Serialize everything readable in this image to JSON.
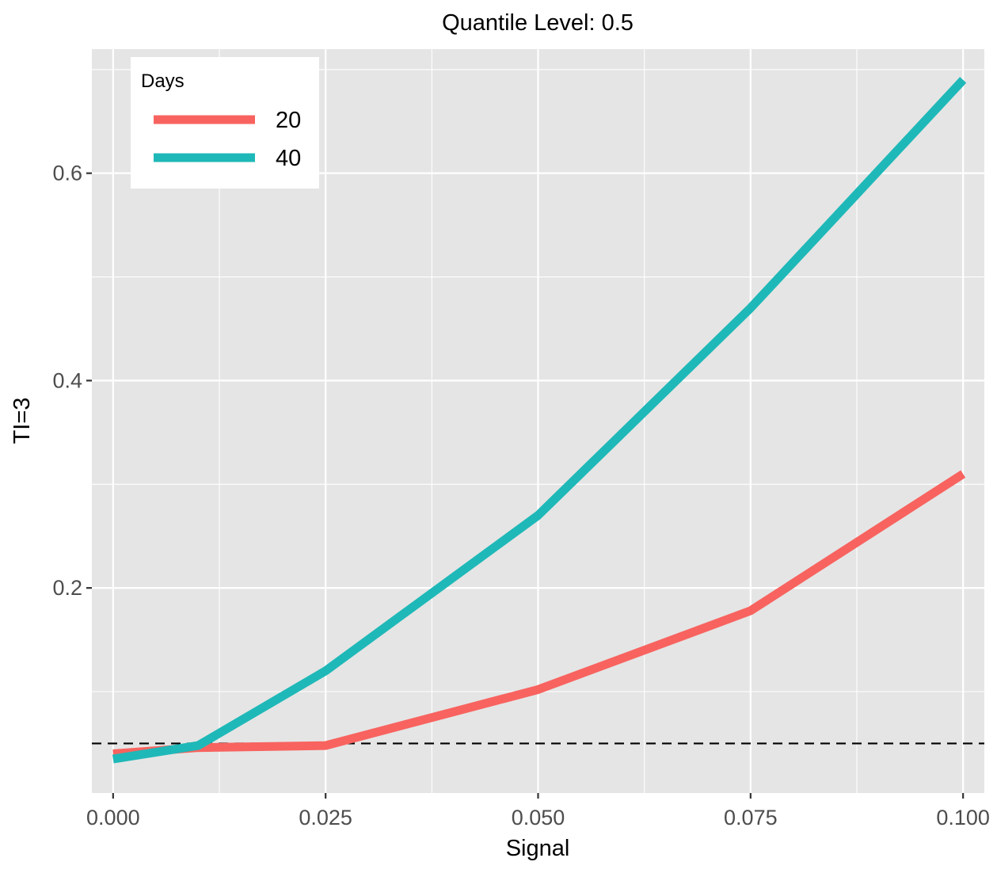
{
  "chart_data": {
    "type": "line",
    "title": "Quantile Level: 0.5",
    "xlabel": "Signal",
    "ylabel": "TI=3",
    "xlim": [
      -0.0025,
      0.1025
    ],
    "ylim": [
      0.0022,
      0.7197
    ],
    "x_ticks": [
      0.0,
      0.025,
      0.05,
      0.075,
      0.1
    ],
    "x_tick_labels": [
      "0.000",
      "0.025",
      "0.050",
      "0.075",
      "0.100"
    ],
    "y_ticks": [
      0.2,
      0.4,
      0.6
    ],
    "y_tick_labels": [
      "0.2",
      "0.4",
      "0.6"
    ],
    "grid": true,
    "background": "#e5e5e5",
    "legend": {
      "title": "Days",
      "position": "top-left"
    },
    "reference_line": {
      "type": "horizontal-dashed",
      "y": 0.05,
      "color": "#000000"
    },
    "series": [
      {
        "name": "20",
        "color": "#f8635f",
        "x": [
          0.0,
          0.01,
          0.025,
          0.05,
          0.075,
          0.1
        ],
        "y": [
          0.04,
          0.046,
          0.048,
          0.102,
          0.178,
          0.31
        ]
      },
      {
        "name": "40",
        "color": "#1fb8b8",
        "x": [
          0.0,
          0.01,
          0.025,
          0.05,
          0.075,
          0.1
        ],
        "y": [
          0.035,
          0.048,
          0.12,
          0.27,
          0.47,
          0.69
        ]
      }
    ]
  }
}
